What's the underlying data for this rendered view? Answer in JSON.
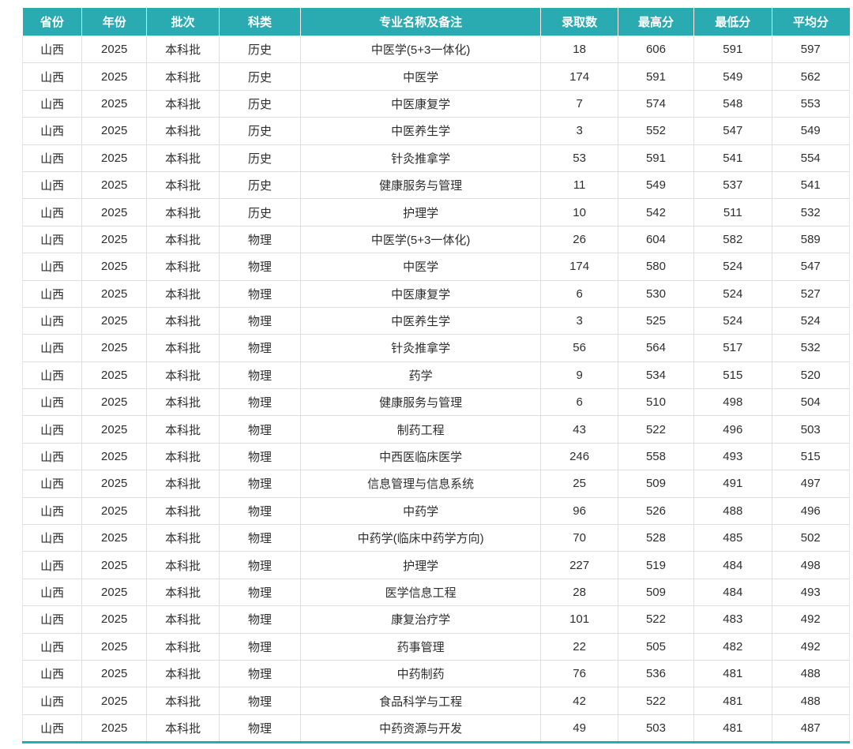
{
  "colors": {
    "header_bg": "#2aabb2",
    "header_text": "#ffffff",
    "cell_border": "#dcdee0",
    "cell_text": "#2e2e2e",
    "bottom_border": "#2aabb2"
  },
  "table": {
    "headers": [
      "省份",
      "年份",
      "批次",
      "科类",
      "专业名称及备注",
      "录取数",
      "最高分",
      "最低分",
      "平均分"
    ],
    "rows": [
      [
        "山西",
        "2025",
        "本科批",
        "历史",
        "中医学(5+3一体化)",
        "18",
        "606",
        "591",
        "597"
      ],
      [
        "山西",
        "2025",
        "本科批",
        "历史",
        "中医学",
        "174",
        "591",
        "549",
        "562"
      ],
      [
        "山西",
        "2025",
        "本科批",
        "历史",
        "中医康复学",
        "7",
        "574",
        "548",
        "553"
      ],
      [
        "山西",
        "2025",
        "本科批",
        "历史",
        "中医养生学",
        "3",
        "552",
        "547",
        "549"
      ],
      [
        "山西",
        "2025",
        "本科批",
        "历史",
        "针灸推拿学",
        "53",
        "591",
        "541",
        "554"
      ],
      [
        "山西",
        "2025",
        "本科批",
        "历史",
        "健康服务与管理",
        "11",
        "549",
        "537",
        "541"
      ],
      [
        "山西",
        "2025",
        "本科批",
        "历史",
        "护理学",
        "10",
        "542",
        "511",
        "532"
      ],
      [
        "山西",
        "2025",
        "本科批",
        "物理",
        "中医学(5+3一体化)",
        "26",
        "604",
        "582",
        "589"
      ],
      [
        "山西",
        "2025",
        "本科批",
        "物理",
        "中医学",
        "174",
        "580",
        "524",
        "547"
      ],
      [
        "山西",
        "2025",
        "本科批",
        "物理",
        "中医康复学",
        "6",
        "530",
        "524",
        "527"
      ],
      [
        "山西",
        "2025",
        "本科批",
        "物理",
        "中医养生学",
        "3",
        "525",
        "524",
        "524"
      ],
      [
        "山西",
        "2025",
        "本科批",
        "物理",
        "针灸推拿学",
        "56",
        "564",
        "517",
        "532"
      ],
      [
        "山西",
        "2025",
        "本科批",
        "物理",
        "药学",
        "9",
        "534",
        "515",
        "520"
      ],
      [
        "山西",
        "2025",
        "本科批",
        "物理",
        "健康服务与管理",
        "6",
        "510",
        "498",
        "504"
      ],
      [
        "山西",
        "2025",
        "本科批",
        "物理",
        "制药工程",
        "43",
        "522",
        "496",
        "503"
      ],
      [
        "山西",
        "2025",
        "本科批",
        "物理",
        "中西医临床医学",
        "246",
        "558",
        "493",
        "515"
      ],
      [
        "山西",
        "2025",
        "本科批",
        "物理",
        "信息管理与信息系统",
        "25",
        "509",
        "491",
        "497"
      ],
      [
        "山西",
        "2025",
        "本科批",
        "物理",
        "中药学",
        "96",
        "526",
        "488",
        "496"
      ],
      [
        "山西",
        "2025",
        "本科批",
        "物理",
        "中药学(临床中药学方向)",
        "70",
        "528",
        "485",
        "502"
      ],
      [
        "山西",
        "2025",
        "本科批",
        "物理",
        "护理学",
        "227",
        "519",
        "484",
        "498"
      ],
      [
        "山西",
        "2025",
        "本科批",
        "物理",
        "医学信息工程",
        "28",
        "509",
        "484",
        "493"
      ],
      [
        "山西",
        "2025",
        "本科批",
        "物理",
        "康复治疗学",
        "101",
        "522",
        "483",
        "492"
      ],
      [
        "山西",
        "2025",
        "本科批",
        "物理",
        "药事管理",
        "22",
        "505",
        "482",
        "492"
      ],
      [
        "山西",
        "2025",
        "本科批",
        "物理",
        "中药制药",
        "76",
        "536",
        "481",
        "488"
      ],
      [
        "山西",
        "2025",
        "本科批",
        "物理",
        "食品科学与工程",
        "42",
        "522",
        "481",
        "488"
      ],
      [
        "山西",
        "2025",
        "本科批",
        "物理",
        "中药资源与开发",
        "49",
        "503",
        "481",
        "487"
      ]
    ]
  }
}
